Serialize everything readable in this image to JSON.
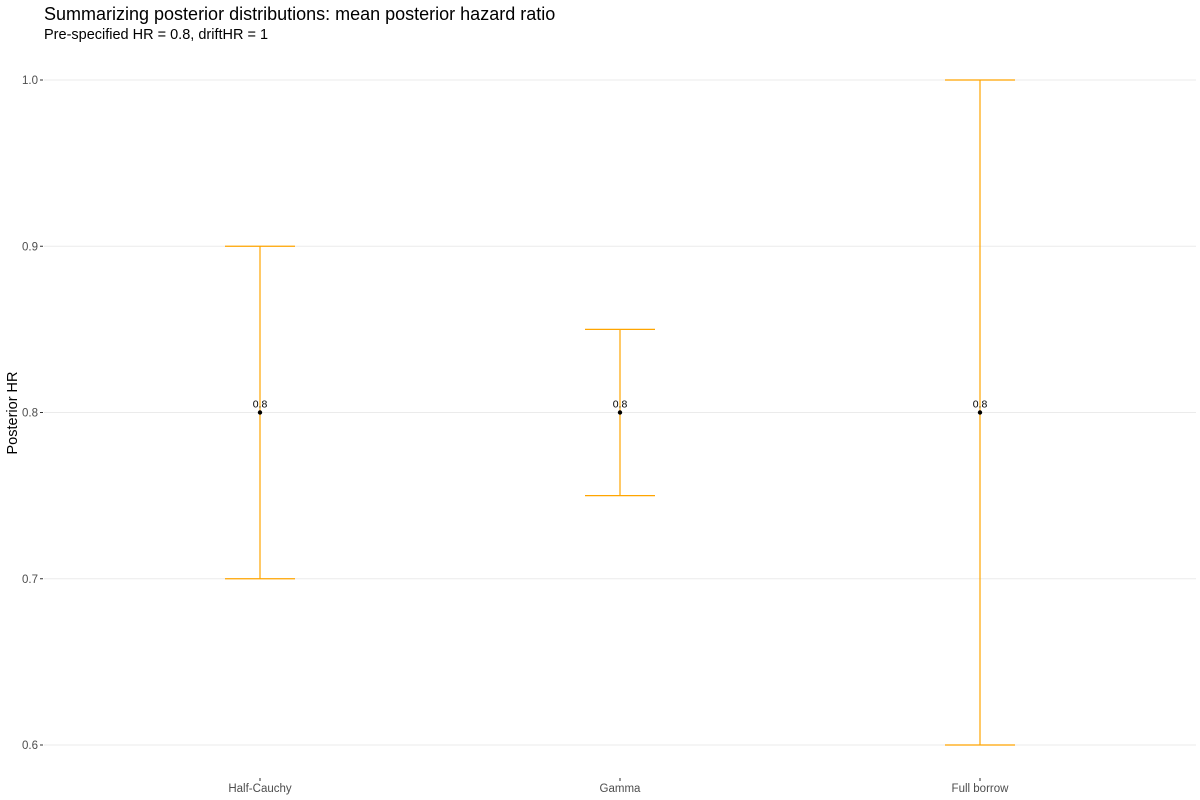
{
  "chart_data": {
    "type": "errorbar",
    "title": "Summarizing posterior distributions: mean posterior hazard ratio",
    "subtitle": "Pre-specified HR = 0.8, driftHR = 1",
    "xlabel": "",
    "ylabel": "Posterior HR",
    "categories": [
      "Half-Cauchy",
      "Gamma",
      "Full borrow"
    ],
    "mean": [
      0.8,
      0.8,
      0.8
    ],
    "lower": [
      0.7,
      0.75,
      0.6
    ],
    "upper": [
      0.9,
      0.85,
      1.0
    ],
    "data_labels": [
      "0.8",
      "0.8",
      "0.8"
    ],
    "ylim": [
      0.6,
      1.0
    ],
    "yticks": [
      0.6,
      0.7,
      0.8,
      0.9,
      1.0
    ],
    "ytick_labels": [
      "0.6",
      "0.7",
      "0.8",
      "0.9",
      "1.0"
    ],
    "grid": true,
    "legend": "none",
    "colors": {
      "errorbar": "#FFA500",
      "point": "#000000",
      "grid": "#EBEBEB"
    }
  }
}
